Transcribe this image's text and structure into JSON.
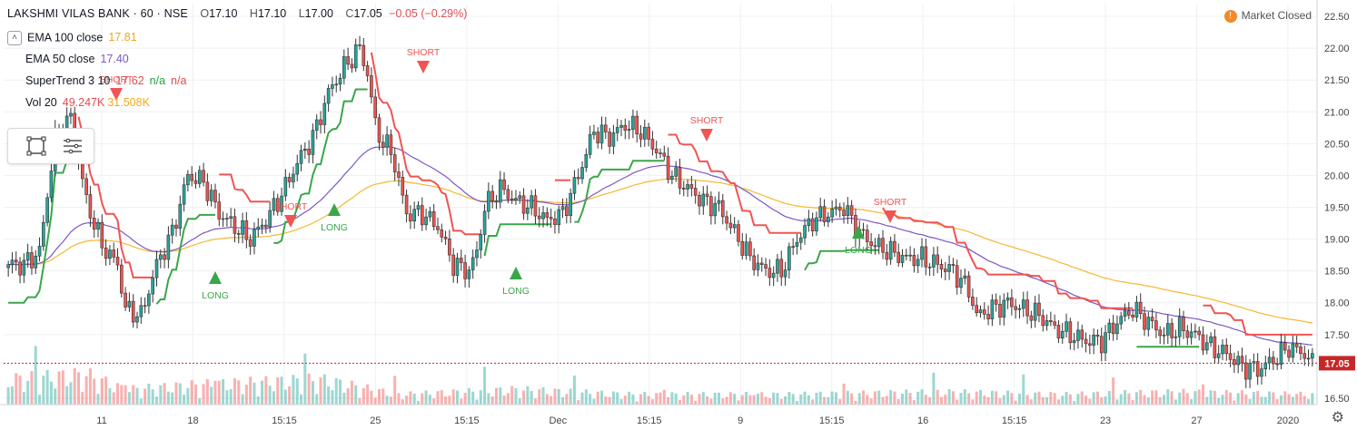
{
  "header": {
    "symbol": "LAKSHMI VILAS BANK · 60 · NSE",
    "open_label": "O",
    "open": "17.10",
    "high_label": "H",
    "high": "17.10",
    "low_label": "L",
    "low": "17.00",
    "close_label": "C",
    "close": "17.05",
    "change": "−0.05 (−0.29%)"
  },
  "legend": [
    {
      "name": "EMA 100 close",
      "values": [
        "17.81"
      ],
      "colors": [
        "#f0a81e"
      ]
    },
    {
      "name": "EMA 50 close",
      "values": [
        "17.40"
      ],
      "colors": [
        "#7e57c2"
      ]
    },
    {
      "name": "SuperTrend 3 10",
      "values": [
        "17.62",
        "n/a",
        "n/a"
      ],
      "colors": [
        "#e04e4e",
        "#26a243",
        "#e04e4e"
      ]
    },
    {
      "name": "Vol 20",
      "values": [
        "49.247K",
        "31.508K"
      ],
      "colors": [
        "#e04e4e",
        "#f0a81e"
      ]
    }
  ],
  "status": {
    "label": "Market Closed",
    "icon": "exclamation-icon"
  },
  "colors": {
    "up": "#26a69a",
    "down": "#ef5350",
    "supertrend_up": "#3aa64a",
    "supertrend_down": "#f05454",
    "ema100": "#f5b731",
    "ema50": "#7e57c2",
    "price_line": "#c62828"
  },
  "chart_data": {
    "type": "candlestick",
    "y_axis": {
      "ticks": [
        "22.50",
        "22.00",
        "21.50",
        "21.00",
        "20.50",
        "20.00",
        "19.50",
        "19.00",
        "18.50",
        "18.00",
        "17.50",
        "16.50"
      ],
      "range": [
        16.4,
        22.7
      ]
    },
    "x_axis": {
      "ticks": [
        "11",
        "18",
        "15:15",
        "25",
        "15:15",
        "Dec",
        "15:15",
        "9",
        "15:15",
        "16",
        "15:15",
        "23",
        "27",
        "2020"
      ]
    },
    "last_price": "17.05",
    "close_anchors": [
      [
        0,
        18.6
      ],
      [
        4,
        18.6
      ],
      [
        8,
        18.8
      ],
      [
        12,
        20.6
      ],
      [
        16,
        20.9
      ],
      [
        20,
        19.6
      ],
      [
        24,
        18.9
      ],
      [
        28,
        18.6
      ],
      [
        30,
        17.9
      ],
      [
        34,
        17.8
      ],
      [
        38,
        18.6
      ],
      [
        42,
        19.1
      ],
      [
        46,
        20.0
      ],
      [
        50,
        19.9
      ],
      [
        54,
        19.4
      ],
      [
        58,
        19.2
      ],
      [
        62,
        19.0
      ],
      [
        66,
        19.3
      ],
      [
        70,
        19.7
      ],
      [
        74,
        20.2
      ],
      [
        78,
        20.6
      ],
      [
        82,
        21.3
      ],
      [
        86,
        21.7
      ],
      [
        90,
        22.0
      ],
      [
        92,
        21.6
      ],
      [
        94,
        20.8
      ],
      [
        96,
        20.5
      ],
      [
        98,
        20.4
      ],
      [
        102,
        19.4
      ],
      [
        106,
        19.4
      ],
      [
        110,
        19.2
      ],
      [
        114,
        18.6
      ],
      [
        118,
        18.5
      ],
      [
        120,
        18.8
      ],
      [
        122,
        19.5
      ],
      [
        126,
        19.8
      ],
      [
        130,
        19.6
      ],
      [
        134,
        19.5
      ],
      [
        138,
        19.3
      ],
      [
        142,
        19.4
      ],
      [
        146,
        20.0
      ],
      [
        150,
        20.7
      ],
      [
        154,
        20.6
      ],
      [
        158,
        20.8
      ],
      [
        162,
        20.7
      ],
      [
        166,
        20.4
      ],
      [
        170,
        20.0
      ],
      [
        174,
        19.8
      ],
      [
        178,
        19.6
      ],
      [
        182,
        19.5
      ],
      [
        186,
        19.1
      ],
      [
        190,
        18.7
      ],
      [
        194,
        18.5
      ],
      [
        198,
        18.5
      ],
      [
        202,
        19.0
      ],
      [
        206,
        19.3
      ],
      [
        210,
        19.4
      ],
      [
        214,
        19.5
      ],
      [
        218,
        19.1
      ],
      [
        222,
        18.9
      ],
      [
        226,
        18.8
      ],
      [
        230,
        18.7
      ],
      [
        234,
        18.7
      ],
      [
        238,
        18.6
      ],
      [
        242,
        18.5
      ],
      [
        246,
        18.2
      ],
      [
        248,
        17.8
      ],
      [
        252,
        17.9
      ],
      [
        256,
        18.0
      ],
      [
        260,
        17.9
      ],
      [
        264,
        17.8
      ],
      [
        268,
        17.6
      ],
      [
        272,
        17.5
      ],
      [
        276,
        17.4
      ],
      [
        280,
        17.4
      ],
      [
        284,
        17.7
      ],
      [
        288,
        17.9
      ],
      [
        292,
        17.7
      ],
      [
        296,
        17.5
      ],
      [
        300,
        17.6
      ],
      [
        304,
        17.5
      ],
      [
        308,
        17.3
      ],
      [
        312,
        17.2
      ],
      [
        316,
        17.0
      ],
      [
        320,
        16.95
      ],
      [
        324,
        17.1
      ],
      [
        328,
        17.3
      ],
      [
        332,
        17.2
      ],
      [
        334,
        17.05
      ]
    ],
    "volume_anchors": [
      [
        0,
        0.5
      ],
      [
        20,
        0.6
      ],
      [
        30,
        0.3
      ],
      [
        50,
        0.4
      ],
      [
        80,
        0.5
      ],
      [
        100,
        0.2
      ],
      [
        130,
        0.3
      ],
      [
        160,
        0.2
      ],
      [
        200,
        0.2
      ],
      [
        240,
        0.25
      ],
      [
        270,
        0.2
      ],
      [
        300,
        0.25
      ],
      [
        334,
        0.2
      ]
    ],
    "signals": [
      {
        "type": "SHORT",
        "x": "11"
      },
      {
        "type": "LONG",
        "x": "18"
      },
      {
        "type": "SHORT",
        "x": "18"
      },
      {
        "type": "LONG",
        "x": "15:15"
      },
      {
        "type": "SHORT",
        "x": "25"
      },
      {
        "type": "LONG",
        "x": "15:15"
      },
      {
        "type": "SHORT",
        "x": "9"
      },
      {
        "type": "LONG",
        "x": "16"
      },
      {
        "type": "SHORT",
        "x": "16"
      }
    ],
    "supertrend_last": "17.62"
  }
}
